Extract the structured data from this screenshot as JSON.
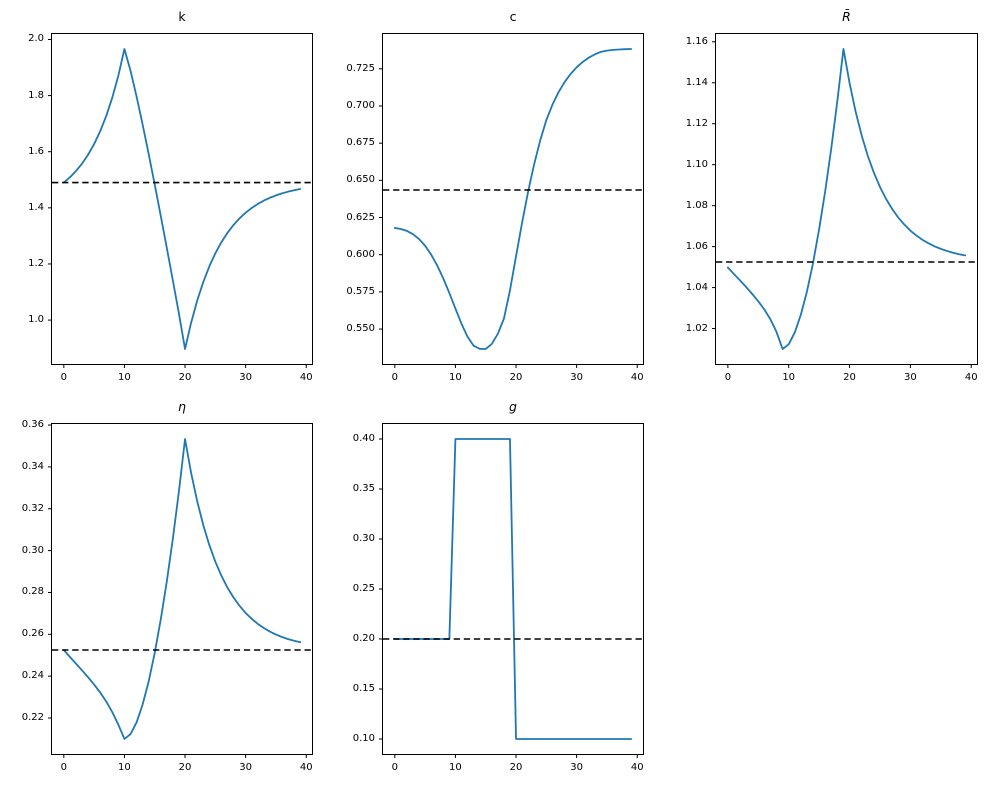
{
  "figure": {
    "background": "#ffffff",
    "grid_rows": 2,
    "grid_cols": 3,
    "empty_cells": 1
  },
  "chart_data": [
    {
      "id": "k",
      "type": "line",
      "title": "k",
      "title_italic": false,
      "xlabel": "",
      "ylabel": "",
      "grid": false,
      "legend": "none",
      "line_color": "#1f77b4",
      "ref_color": "#000000",
      "ref_style": "dashed",
      "ref_line": 1.49,
      "xlim": [
        -1.95,
        40.95
      ],
      "ylim": [
        0.8435,
        2.0195
      ],
      "xticks": {
        "values": [
          0,
          10,
          20,
          30,
          40
        ],
        "labels": [
          "0",
          "10",
          "20",
          "30",
          "40"
        ]
      },
      "yticks": {
        "values": [
          1.0,
          1.2,
          1.4,
          1.6,
          1.8,
          2.0
        ],
        "labels": [
          "1.0",
          "1.2",
          "1.4",
          "1.6",
          "1.8",
          "2.0"
        ]
      },
      "x": [
        0,
        1,
        2,
        3,
        4,
        5,
        6,
        7,
        8,
        9,
        10,
        11,
        12,
        13,
        14,
        15,
        16,
        17,
        18,
        19,
        20,
        21,
        22,
        23,
        24,
        25,
        26,
        27,
        28,
        29,
        30,
        31,
        32,
        33,
        34,
        35,
        36,
        37,
        38,
        39
      ],
      "y": [
        1.49,
        1.5086,
        1.531,
        1.5574,
        1.5892,
        1.6273,
        1.6729,
        1.7275,
        1.793,
        1.8712,
        1.966,
        1.8892,
        1.7971,
        1.6972,
        1.5919,
        1.4828,
        1.3708,
        1.2564,
        1.1402,
        1.0223,
        0.897,
        0.9902,
        1.0688,
        1.135,
        1.1908,
        1.2378,
        1.2774,
        1.3109,
        1.339,
        1.3627,
        1.3827,
        1.3996,
        1.4138,
        1.4258,
        1.4359,
        1.4443,
        1.4515,
        1.4576,
        1.4627,
        1.467
      ]
    },
    {
      "id": "c",
      "type": "line",
      "title": "c",
      "title_italic": false,
      "xlabel": "",
      "ylabel": "",
      "grid": false,
      "legend": "none",
      "line_color": "#1f77b4",
      "ref_color": "#000000",
      "ref_style": "dashed",
      "ref_line": 0.6435,
      "xlim": [
        -1.95,
        40.95
      ],
      "ylim": [
        0.5265,
        0.7484
      ],
      "xticks": {
        "values": [
          0,
          10,
          20,
          30,
          40
        ],
        "labels": [
          "0",
          "10",
          "20",
          "30",
          "40"
        ]
      },
      "yticks": {
        "values": [
          0.55,
          0.575,
          0.6,
          0.625,
          0.65,
          0.675,
          0.7,
          0.725
        ],
        "labels": [
          "0.550",
          "0.575",
          "0.600",
          "0.625",
          "0.650",
          "0.675",
          "0.700",
          "0.725"
        ]
      },
      "x": [
        0,
        1,
        2,
        3,
        4,
        5,
        6,
        7,
        8,
        9,
        10,
        11,
        12,
        13,
        14,
        15,
        16,
        17,
        18,
        19,
        20,
        21,
        22,
        23,
        24,
        25,
        26,
        27,
        28,
        29,
        30,
        31,
        32,
        33,
        34,
        35,
        36,
        37,
        38,
        39
      ],
      "y": [
        0.618,
        0.6173,
        0.616,
        0.6138,
        0.6105,
        0.606,
        0.6,
        0.5927,
        0.584,
        0.5742,
        0.5638,
        0.5536,
        0.5448,
        0.5388,
        0.5367,
        0.5366,
        0.54,
        0.5468,
        0.557,
        0.576,
        0.599,
        0.6215,
        0.6425,
        0.661,
        0.677,
        0.6905,
        0.7008,
        0.7092,
        0.716,
        0.7215,
        0.726,
        0.7296,
        0.7325,
        0.7347,
        0.7364,
        0.7372,
        0.7377,
        0.738,
        0.7382,
        0.7383
      ]
    },
    {
      "id": "Rbar",
      "type": "line",
      "title": "R̄",
      "title_italic": true,
      "xlabel": "",
      "ylabel": "",
      "grid": false,
      "legend": "none",
      "line_color": "#1f77b4",
      "ref_color": "#000000",
      "ref_style": "dashed",
      "ref_line": 1.0525,
      "xlim": [
        -1.95,
        40.95
      ],
      "ylim": [
        1.0027,
        1.1638
      ],
      "xticks": {
        "values": [
          0,
          10,
          20,
          30,
          40
        ],
        "labels": [
          "0",
          "10",
          "20",
          "30",
          "40"
        ]
      },
      "yticks": {
        "values": [
          1.02,
          1.04,
          1.06,
          1.08,
          1.1,
          1.12,
          1.14,
          1.16
        ],
        "labels": [
          "1.02",
          "1.04",
          "1.06",
          "1.08",
          "1.10",
          "1.12",
          "1.14",
          "1.16"
        ]
      },
      "x": [
        0,
        1,
        2,
        3,
        4,
        5,
        6,
        7,
        8,
        9,
        10,
        11,
        12,
        13,
        14,
        15,
        16,
        17,
        18,
        19,
        20,
        21,
        22,
        23,
        24,
        25,
        26,
        27,
        28,
        29,
        30,
        31,
        32,
        33,
        34,
        35,
        36,
        37,
        38,
        39
      ],
      "y": [
        1.0498,
        1.0466,
        1.0435,
        1.0403,
        1.0369,
        1.0333,
        1.0293,
        1.0245,
        1.0183,
        1.01,
        1.0123,
        1.0181,
        1.0268,
        1.0381,
        1.052,
        1.0685,
        1.0871,
        1.108,
        1.1312,
        1.1565,
        1.1399,
        1.1259,
        1.1142,
        1.1043,
        1.0961,
        1.0891,
        1.0833,
        1.0784,
        1.0742,
        1.0708,
        1.0678,
        1.0654,
        1.0633,
        1.0616,
        1.0601,
        1.0589,
        1.0579,
        1.057,
        1.0563,
        1.0557
      ]
    },
    {
      "id": "eta",
      "type": "line",
      "title": "η",
      "title_italic": true,
      "xlabel": "",
      "ylabel": "",
      "grid": false,
      "legend": "none",
      "line_color": "#1f77b4",
      "ref_color": "#000000",
      "ref_style": "dashed",
      "ref_line": 0.2525,
      "xlim": [
        -1.95,
        40.95
      ],
      "ylim": [
        0.2028,
        0.3605
      ],
      "xticks": {
        "values": [
          0,
          10,
          20,
          30,
          40
        ],
        "labels": [
          "0",
          "10",
          "20",
          "30",
          "40"
        ]
      },
      "yticks": {
        "values": [
          0.22,
          0.24,
          0.26,
          0.28,
          0.3,
          0.32,
          0.34,
          0.36
        ],
        "labels": [
          "0.22",
          "0.24",
          "0.26",
          "0.28",
          "0.30",
          "0.32",
          "0.34",
          "0.36"
        ]
      },
      "x": [
        0,
        1,
        2,
        3,
        4,
        5,
        6,
        7,
        8,
        9,
        10,
        11,
        12,
        13,
        14,
        15,
        16,
        17,
        18,
        19,
        20,
        21,
        22,
        23,
        24,
        25,
        26,
        27,
        28,
        29,
        30,
        31,
        32,
        33,
        34,
        35,
        36,
        37,
        38,
        39
      ],
      "y": [
        0.2525,
        0.2492,
        0.246,
        0.2428,
        0.2395,
        0.236,
        0.2322,
        0.2279,
        0.2228,
        0.2168,
        0.21,
        0.2123,
        0.2179,
        0.2264,
        0.2375,
        0.2511,
        0.2672,
        0.2854,
        0.3059,
        0.3285,
        0.3533,
        0.3372,
        0.3237,
        0.3123,
        0.3027,
        0.2947,
        0.288,
        0.2823,
        0.2776,
        0.2736,
        0.2702,
        0.2674,
        0.265,
        0.263,
        0.2613,
        0.2599,
        0.2587,
        0.2577,
        0.2569,
        0.2562
      ]
    },
    {
      "id": "g",
      "type": "line",
      "title": "g",
      "title_italic": true,
      "xlabel": "",
      "ylabel": "",
      "grid": false,
      "legend": "none",
      "line_color": "#1f77b4",
      "ref_color": "#000000",
      "ref_style": "dashed",
      "ref_line": 0.2,
      "xlim": [
        -1.95,
        40.95
      ],
      "ylim": [
        0.085,
        0.415
      ],
      "xticks": {
        "values": [
          0,
          10,
          20,
          30,
          40
        ],
        "labels": [
          "0",
          "10",
          "20",
          "30",
          "40"
        ]
      },
      "yticks": {
        "values": [
          0.1,
          0.15,
          0.2,
          0.25,
          0.3,
          0.35,
          0.4
        ],
        "labels": [
          "0.10",
          "0.15",
          "0.20",
          "0.25",
          "0.30",
          "0.35",
          "0.40"
        ]
      },
      "x": [
        0,
        1,
        2,
        3,
        4,
        5,
        6,
        7,
        8,
        9,
        10,
        11,
        12,
        13,
        14,
        15,
        16,
        17,
        18,
        19,
        20,
        21,
        22,
        23,
        24,
        25,
        26,
        27,
        28,
        29,
        30,
        31,
        32,
        33,
        34,
        35,
        36,
        37,
        38,
        39
      ],
      "y": [
        0.2,
        0.2,
        0.2,
        0.2,
        0.2,
        0.2,
        0.2,
        0.2,
        0.2,
        0.2,
        0.4,
        0.4,
        0.4,
        0.4,
        0.4,
        0.4,
        0.4,
        0.4,
        0.4,
        0.4,
        0.1,
        0.1,
        0.1,
        0.1,
        0.1,
        0.1,
        0.1,
        0.1,
        0.1,
        0.1,
        0.1,
        0.1,
        0.1,
        0.1,
        0.1,
        0.1,
        0.1,
        0.1,
        0.1,
        0.1
      ]
    }
  ]
}
